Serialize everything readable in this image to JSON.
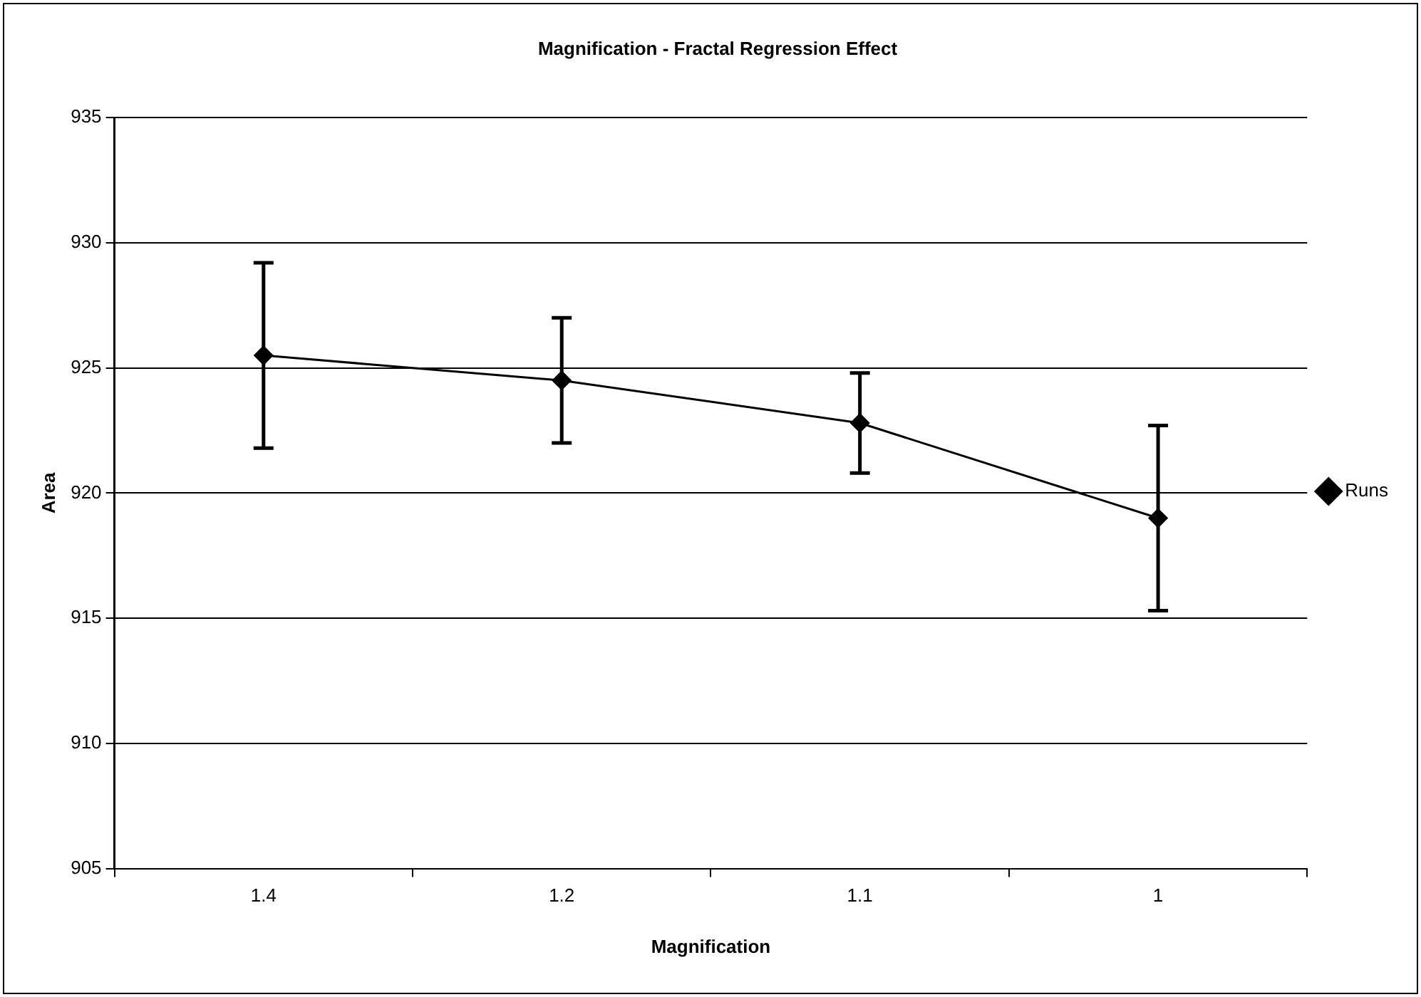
{
  "chart_data": {
    "type": "line",
    "title": "Magnification - Fractal Regression Effect",
    "xlabel": "Magnification",
    "ylabel": "Area",
    "categories": [
      "1.4",
      "1.2",
      "1.1",
      "1"
    ],
    "series": [
      {
        "name": "Runs",
        "color": "#000000",
        "values": [
          925.5,
          924.5,
          922.8,
          919.0
        ],
        "errors": [
          3.7,
          2.5,
          2.0,
          3.7
        ]
      }
    ],
    "ylim": [
      905,
      935
    ],
    "yticks": [
      905,
      910,
      915,
      920,
      925,
      930,
      935
    ],
    "grid": "y",
    "legend": "right",
    "marker": "diamond",
    "line_style": "solid"
  }
}
